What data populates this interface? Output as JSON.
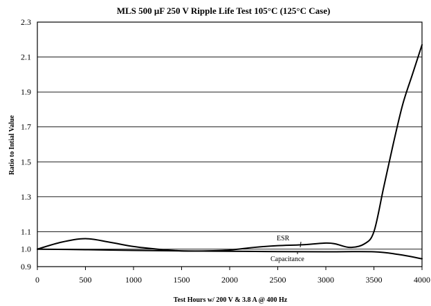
{
  "chart_data": {
    "type": "line",
    "title": "MLS 500 μF 250 V Ripple Life Test 105°C (125°C Case)",
    "xlabel": "Test Hours w/ 200 V & 3.8 A @ 400 Hz",
    "ylabel": "Ratio to Intial Value",
    "xlim": [
      0,
      4000
    ],
    "ylim": [
      0.9,
      2.3
    ],
    "x_ticks": [
      0,
      500,
      1000,
      1500,
      2000,
      2500,
      3000,
      3500,
      4000
    ],
    "y_ticks": [
      0.9,
      1.0,
      1.1,
      1.3,
      1.5,
      1.7,
      1.9,
      2.1,
      2.3
    ],
    "y_tick_labels": [
      "0.9",
      "1.0",
      "1.1",
      "1.3",
      "1.5",
      "1.7",
      "1.9",
      "2.1",
      "2.3"
    ],
    "grid": "horizontal",
    "series": [
      {
        "name": "ESR",
        "x": [
          0,
          250,
          500,
          750,
          1000,
          1250,
          1500,
          1750,
          2000,
          2250,
          2500,
          2750,
          3000,
          3100,
          3250,
          3400,
          3500,
          3600,
          3700,
          3800,
          3900,
          4000
        ],
        "y": [
          1.0,
          1.04,
          1.06,
          1.04,
          1.015,
          1.0,
          0.99,
          0.99,
          0.995,
          1.01,
          1.02,
          1.025,
          1.035,
          1.03,
          1.01,
          1.03,
          1.1,
          1.35,
          1.6,
          1.83,
          2.0,
          2.17
        ]
      },
      {
        "name": "Capacitance",
        "x": [
          0,
          500,
          1000,
          1500,
          2000,
          2500,
          3000,
          3500,
          3750,
          4000
        ],
        "y": [
          1.0,
          0.997,
          0.993,
          0.99,
          0.988,
          0.986,
          0.985,
          0.985,
          0.97,
          0.945
        ]
      }
    ],
    "annotations": [
      {
        "text": "ESR",
        "series": "ESR"
      },
      {
        "text": "Capacitance",
        "series": "Capacitance"
      }
    ]
  }
}
